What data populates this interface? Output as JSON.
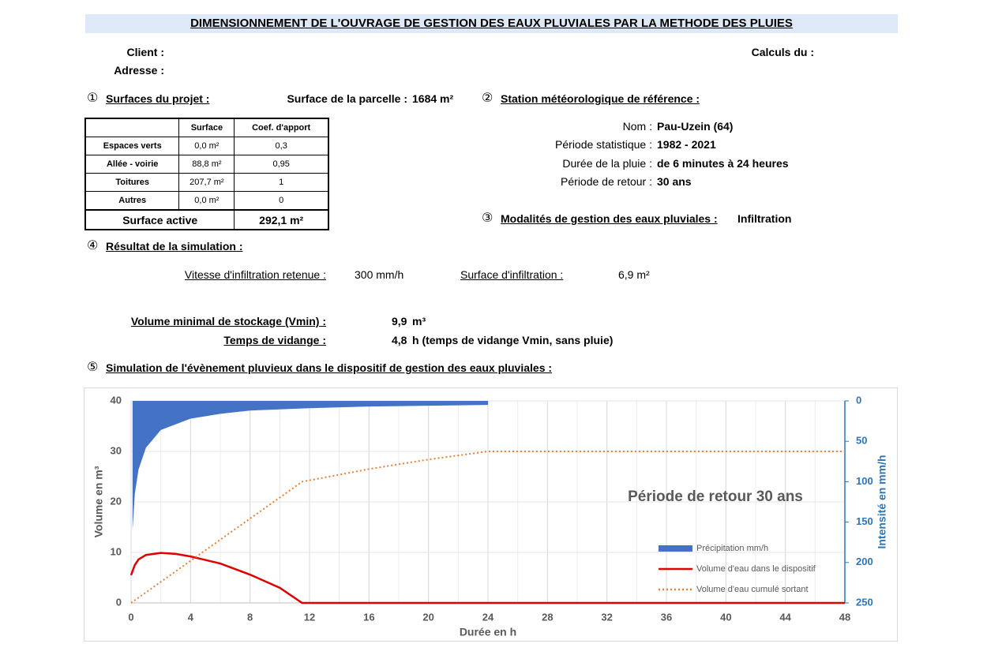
{
  "header": {
    "title": "DIMENSIONNEMENT DE L'OUVRAGE DE GESTION DES EAUX PLUVIALES PAR LA METHODE DES PLUIES",
    "client_label": "Client :",
    "address_label": "Adresse :",
    "date_label": "Calculs du :"
  },
  "section1": {
    "number": "①",
    "title": "Surfaces du projet :",
    "parcel_label": "Surface de la parcelle :",
    "parcel_value": "1684 m²"
  },
  "table": {
    "columns": [
      "Surface",
      "Coef. d'apport"
    ],
    "rows": [
      [
        "Espaces verts",
        "0,0 m²",
        "0,3"
      ],
      [
        "Allée - voirie",
        "88,8 m²",
        "0,95"
      ],
      [
        "Toitures",
        "207,7 m²",
        "1"
      ],
      [
        "Autres",
        "0,0 m²",
        "0"
      ]
    ],
    "total_label": "Surface active",
    "total_value": "292,1 m²"
  },
  "section2": {
    "number": "②",
    "title": "Station météorologique de référence :",
    "fields": [
      {
        "label": "Nom :",
        "value": "Pau-Uzein (64)"
      },
      {
        "label": "Période statistique :",
        "value": "1982 - 2021"
      },
      {
        "label": "Durée de la pluie :",
        "value": "de 6 minutes à 24 heures"
      },
      {
        "label": "Période de retour :",
        "value": "30 ans"
      }
    ]
  },
  "section3": {
    "number": "③",
    "title": "Modalités de gestion des eaux pluviales :",
    "value": "Infiltration"
  },
  "section4": {
    "number": "④",
    "title": "Résultat de la simulation :",
    "infiltration_speed_label": "Vitesse d'infiltration retenue :",
    "infiltration_speed_value": "300 mm/h",
    "infiltration_area_label": "Surface d'infiltration :",
    "infiltration_area_value": "6,9 m²",
    "vmin_label": "Volume minimal de stockage (Vmin) :",
    "vmin_value": "9,9",
    "vmin_unit": "m³",
    "drain_label": "Temps de vidange :",
    "drain_value": "4,8",
    "drain_unit": "h (temps de vidange Vmin, sans pluie)"
  },
  "section5": {
    "number": "⑤",
    "title": "Simulation de l'évènement pluvieux dans le dispositif de gestion des eaux pluviales :"
  },
  "chart_data": {
    "type": "line",
    "annotation": "Période de retour 30 ans",
    "x_label": "Durée en h",
    "y_label": "Volume en m³",
    "y2_label": "Intensité en mm/h",
    "xlim": [
      0,
      48
    ],
    "xticks": [
      0,
      4,
      8,
      12,
      16,
      20,
      24,
      28,
      32,
      36,
      40,
      44,
      48
    ],
    "ylim": [
      0,
      40
    ],
    "yticks": [
      0,
      10,
      20,
      30,
      40
    ],
    "y2lim": [
      250,
      0
    ],
    "y2ticks": [
      0,
      50,
      100,
      150,
      200,
      250
    ],
    "grid": true,
    "series": [
      {
        "name": "Précipitation mm/h",
        "color": "#4472c4",
        "style": "area",
        "axis": "y2",
        "x": [
          0.1,
          0.25,
          0.5,
          1,
          2,
          4,
          6,
          8,
          12,
          16,
          20,
          24
        ],
        "values": [
          160,
          115,
          85,
          58,
          36,
          22,
          16,
          12,
          9,
          7,
          6,
          5
        ]
      },
      {
        "name": "Volume d'eau dans le dispositif",
        "color": "#e00000",
        "style": "solid",
        "x": [
          0,
          0.25,
          0.5,
          1,
          2,
          3,
          4,
          6,
          8,
          10,
          11.5,
          48
        ],
        "values": [
          5.5,
          7.5,
          8.6,
          9.5,
          9.9,
          9.7,
          9.2,
          7.8,
          5.6,
          3,
          0,
          0
        ]
      },
      {
        "name": "Volume d'eau cumulé sortant",
        "color": "#ed7d31",
        "style": "dotted",
        "x": [
          0,
          11.5,
          16,
          20,
          24,
          48
        ],
        "values": [
          0,
          24,
          26.5,
          28.4,
          30,
          30
        ]
      }
    ]
  }
}
